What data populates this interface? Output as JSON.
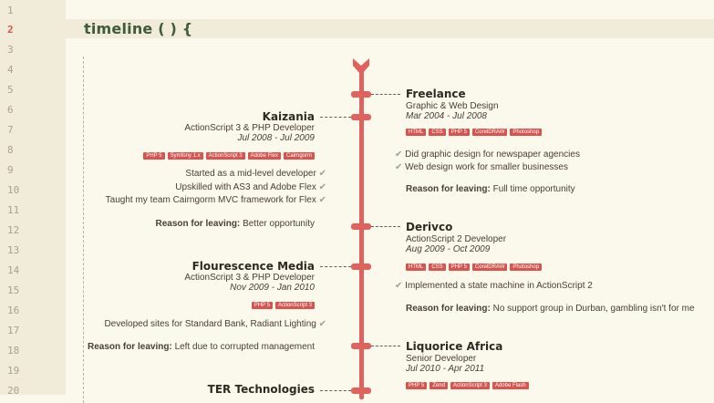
{
  "editor": {
    "line_numbers": [
      "1",
      "2",
      "3",
      "4",
      "5",
      "6",
      "7",
      "8",
      "9",
      "10",
      "11",
      "12",
      "13",
      "14",
      "15",
      "16",
      "17",
      "18",
      "19",
      "20"
    ],
    "active_line": "2",
    "heading": "timeline ( ) {"
  },
  "timeline": {
    "right": [
      {
        "company": "Freelance",
        "role": "Graphic & Web Design",
        "dates": "Mar 2004 - Jul 2008",
        "skills": [
          "HTML",
          "CSS",
          "PHP 5",
          "CorelDRAW",
          "Photoshop"
        ],
        "bullets": [
          "Did graphic design for newspaper agencies",
          "Web design work for smaller businesses"
        ],
        "reason_label": "Reason for leaving:",
        "reason": "Full time opportunity"
      },
      {
        "company": "Derivco",
        "role": "ActionScript 2 Developer",
        "dates": "Aug 2009 - Oct 2009",
        "skills": [
          "HTML",
          "CSS",
          "PHP 5",
          "CorelDRAW",
          "Photoshop"
        ],
        "bullets": [
          "Implemented a state machine in ActionScript 2"
        ],
        "reason_label": "Reason for leaving:",
        "reason": "No support group in Durban, gambling isn't for me"
      },
      {
        "company": "Liquorice Africa",
        "role": "Senior Developer",
        "dates": "Jul 2010 - Apr 2011",
        "skills": [
          "PHP 5",
          "Zend",
          "ActionScript 3",
          "Adobe Flash"
        ]
      }
    ],
    "left": [
      {
        "company": "Kaizania",
        "role": "ActionScript 3 & PHP Developer",
        "dates": "Jul 2008 - Jul 2009",
        "skills": [
          "PHP 5",
          "Symfony 1.x",
          "ActionScript 3",
          "Adobe Flex",
          "Cairngorm"
        ],
        "bullets": [
          "Started as a mid-level developer",
          "Upskilled with AS3 and Adobe Flex",
          "Taught my team Cairngorm MVC framework for Flex"
        ],
        "reason_label": "Reason for leaving:",
        "reason": "Better opportunity"
      },
      {
        "company": "Flourescence Media",
        "role": "ActionScript 3 & PHP Developer",
        "dates": "Nov 2009 - Jan 2010",
        "skills": [
          "PHP 5",
          "ActionScript 3"
        ],
        "bullets": [
          "Developed sites for Standard Bank, Radiant Lighting"
        ],
        "reason_label": "Reason for leaving:",
        "reason": "Left due to corrupted management"
      },
      {
        "company": "TER Technologies"
      }
    ]
  },
  "icons": {
    "check": "check-icon",
    "tip": "chevron-down-icon"
  },
  "colors": {
    "accent": "#e0625f",
    "heading": "#3f5b3a",
    "background": "#fbf8ec",
    "gutter": "#f1ecd9"
  }
}
